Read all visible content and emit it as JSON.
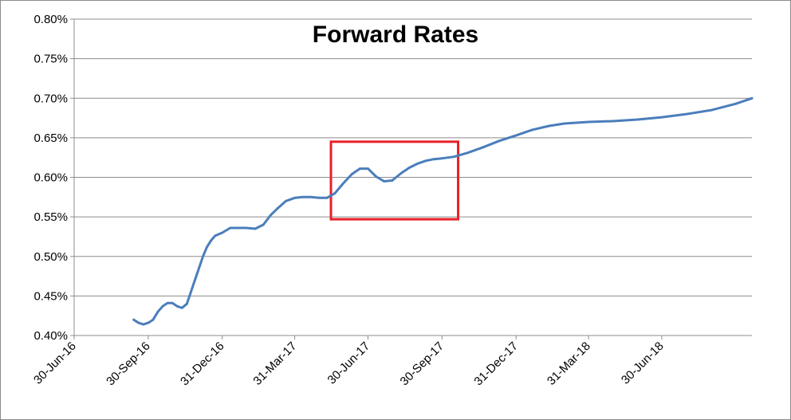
{
  "chart_data": {
    "type": "line",
    "title": "Forward Rates",
    "xlabel": "",
    "ylabel": "",
    "grid": "horizontal",
    "legend": "none",
    "line_color": "#4a7ebb",
    "annotation_color": "#e8202a",
    "ylim": [
      0.4,
      0.8
    ],
    "y_ticks": [
      "0.40%",
      "0.45%",
      "0.50%",
      "0.55%",
      "0.60%",
      "0.65%",
      "0.70%",
      "0.75%",
      "0.80%"
    ],
    "xlim": [
      "2016-06-30",
      "2018-10-20"
    ],
    "x_ticks": [
      {
        "date": "2016-06-30",
        "label": "30-Jun-16"
      },
      {
        "date": "2016-09-30",
        "label": "30-Sep-16"
      },
      {
        "date": "2016-12-31",
        "label": "31-Dec-16"
      },
      {
        "date": "2017-03-31",
        "label": "31-Mar-17"
      },
      {
        "date": "2017-06-30",
        "label": "30-Jun-17"
      },
      {
        "date": "2017-09-30",
        "label": "30-Sep-17"
      },
      {
        "date": "2017-12-31",
        "label": "31-Dec-17"
      },
      {
        "date": "2018-03-31",
        "label": "31-Mar-18"
      },
      {
        "date": "2018-06-30",
        "label": "30-Jun-18"
      }
    ],
    "annotation_box": {
      "x_from": "2017-05-15",
      "x_to": "2017-10-20",
      "y_from": 0.547,
      "y_to": 0.645
    },
    "series": [
      {
        "x": [
          "2016-09-12",
          "2016-09-18",
          "2016-09-24",
          "2016-09-30",
          "2016-10-06",
          "2016-10-12",
          "2016-10-18",
          "2016-10-24",
          "2016-10-30",
          "2016-11-05",
          "2016-11-11",
          "2016-11-17",
          "2016-11-22",
          "2016-11-27",
          "2016-12-02",
          "2016-12-07",
          "2016-12-12",
          "2016-12-17",
          "2016-12-22",
          "2016-12-31",
          "2017-01-10",
          "2017-01-20",
          "2017-01-30",
          "2017-02-10",
          "2017-02-20",
          "2017-03-01",
          "2017-03-10",
          "2017-03-20",
          "2017-03-31",
          "2017-04-10",
          "2017-04-20",
          "2017-05-01",
          "2017-05-10",
          "2017-05-20",
          "2017-05-30",
          "2017-06-10",
          "2017-06-20",
          "2017-06-30",
          "2017-07-10",
          "2017-07-20",
          "2017-07-30",
          "2017-08-10",
          "2017-08-20",
          "2017-08-30",
          "2017-09-10",
          "2017-09-20",
          "2017-09-30",
          "2017-10-15",
          "2017-11-01",
          "2017-11-20",
          "2017-12-10",
          "2017-12-31",
          "2018-01-20",
          "2018-02-10",
          "2018-03-01",
          "2018-03-31",
          "2018-04-30",
          "2018-05-31",
          "2018-06-30",
          "2018-07-31",
          "2018-08-31",
          "2018-09-30",
          "2018-10-20"
        ],
        "values": [
          0.42,
          0.416,
          0.414,
          0.416,
          0.42,
          0.43,
          0.437,
          0.441,
          0.441,
          0.437,
          0.435,
          0.44,
          0.455,
          0.47,
          0.485,
          0.5,
          0.512,
          0.52,
          0.526,
          0.53,
          0.536,
          0.536,
          0.536,
          0.535,
          0.54,
          0.552,
          0.561,
          0.57,
          0.574,
          0.575,
          0.575,
          0.574,
          0.574,
          0.58,
          0.592,
          0.604,
          0.611,
          0.611,
          0.601,
          0.595,
          0.596,
          0.605,
          0.612,
          0.617,
          0.621,
          0.623,
          0.624,
          0.626,
          0.631,
          0.638,
          0.646,
          0.653,
          0.66,
          0.665,
          0.668,
          0.67,
          0.671,
          0.673,
          0.676,
          0.68,
          0.685,
          0.693,
          0.7
        ]
      }
    ]
  }
}
